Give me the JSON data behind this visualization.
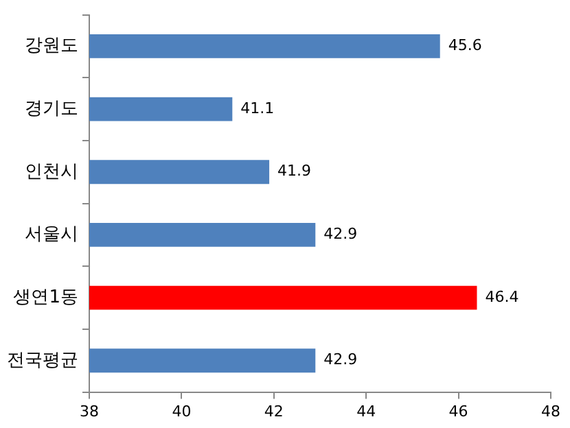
{
  "chart_data": {
    "type": "bar",
    "orientation": "horizontal",
    "categories": [
      "강원도",
      "경기도",
      "인천시",
      "서울시",
      "생연1동",
      "전국평균"
    ],
    "values": [
      45.6,
      41.1,
      41.9,
      42.9,
      46.4,
      42.9
    ],
    "colors": [
      "#4f81bd",
      "#4f81bd",
      "#4f81bd",
      "#4f81bd",
      "#ff0000",
      "#4f81bd"
    ],
    "xlim": [
      38,
      48
    ],
    "xticks": [
      38,
      40,
      42,
      44,
      46,
      48
    ],
    "data_labels": true,
    "grid": false,
    "legend": false
  }
}
